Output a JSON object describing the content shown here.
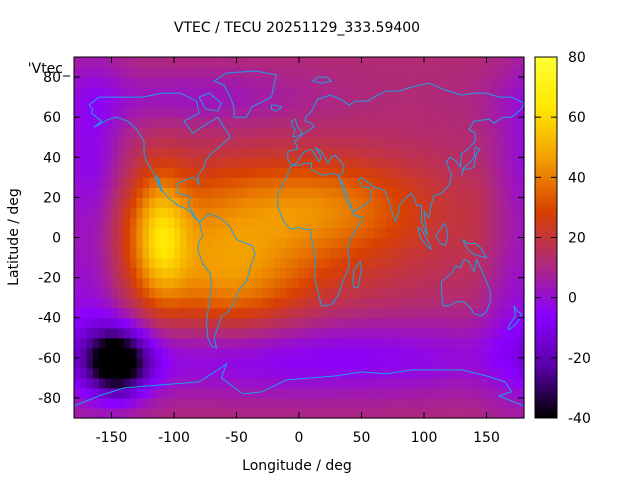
{
  "chart_data": {
    "type": "heatmap",
    "title": "VTEC / TECU 20251129_333.59400",
    "xlabel": "Longitude / deg",
    "ylabel": "Latitude / deg",
    "key_label": "'Vtec_",
    "xlim": [
      -180,
      180
    ],
    "ylim": [
      -90,
      90
    ],
    "x_ticks": [
      -150,
      -100,
      -50,
      0,
      50,
      100,
      150
    ],
    "y_ticks": [
      -80,
      -60,
      -40,
      -20,
      0,
      20,
      40,
      60,
      80
    ],
    "colorbar": {
      "range": [
        -40,
        80
      ],
      "ticks": [
        -40,
        -20,
        0,
        20,
        40,
        60,
        80
      ],
      "palette": [
        "#000000",
        "#5a00a8",
        "#8a00ff",
        "#b02a78",
        "#d84000",
        "#f29b00",
        "#ffe600",
        "#ffff33"
      ]
    },
    "grid": false,
    "coastline_color": "#1ea0e6",
    "field": {
      "resolution_deg": 5,
      "background_tecu": 12,
      "components": [
        {
          "feature": "equatorial-max-west",
          "lon": -110,
          "lat": 0,
          "sigma_lon": 14,
          "sigma_lat": 22,
          "amp_tecu": 28
        },
        {
          "feature": "equatorial-belt",
          "lon": -60,
          "lat": 2,
          "sigma_lon": 100,
          "sigma_lat": 24,
          "amp_tecu": 24
        },
        {
          "feature": "south-atlantic-band",
          "lon": -55,
          "lat": -25,
          "sigma_lon": 40,
          "sigma_lat": 18,
          "amp_tecu": 18
        },
        {
          "feature": "north-africa-band",
          "lon": 20,
          "lat": 18,
          "sigma_lon": 60,
          "sigma_lat": 16,
          "amp_tecu": 16
        },
        {
          "feature": "south-pacific-min",
          "lon": -145,
          "lat": -62,
          "sigma_lon": 18,
          "sigma_lat": 12,
          "amp_tecu": -52
        },
        {
          "feature": "pacific-low-band",
          "lon": -165,
          "lat": 10,
          "sigma_lon": 18,
          "sigma_lat": 50,
          "amp_tecu": -22
        },
        {
          "feature": "southern-ocean-low",
          "lon": 0,
          "lat": -60,
          "sigma_lon": 160,
          "sigma_lat": 14,
          "amp_tecu": -18
        },
        {
          "feature": "north-low",
          "lon": -90,
          "lat": 70,
          "sigma_lon": 70,
          "sigma_lat": 10,
          "amp_tecu": -10
        },
        {
          "feature": "east-pacific-low",
          "lon": 165,
          "lat": -10,
          "sigma_lon": 14,
          "sigma_lat": 50,
          "amp_tecu": -10
        }
      ]
    }
  }
}
